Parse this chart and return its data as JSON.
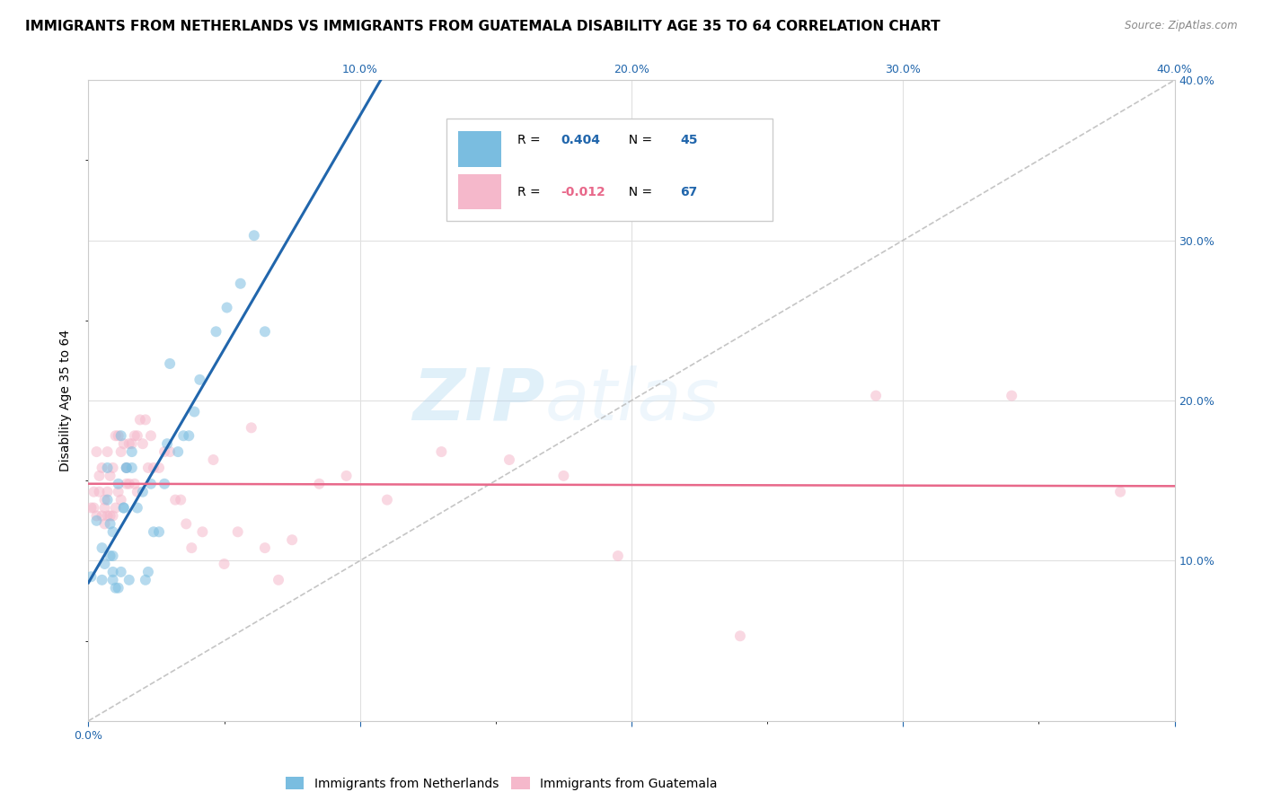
{
  "title": "IMMIGRANTS FROM NETHERLANDS VS IMMIGRANTS FROM GUATEMALA DISABILITY AGE 35 TO 64 CORRELATION CHART",
  "source": "Source: ZipAtlas.com",
  "ylabel": "Disability Age 35 to 64",
  "xlim": [
    0.0,
    0.4
  ],
  "ylim": [
    0.0,
    0.4
  ],
  "watermark": "ZIPatlas",
  "legend_netherlands": "Immigrants from Netherlands",
  "legend_guatemala": "Immigrants from Guatemala",
  "R_netherlands": 0.404,
  "N_netherlands": 45,
  "R_guatemala": -0.012,
  "N_guatemala": 67,
  "color_netherlands": "#7abde0",
  "color_guatemala": "#f5b8cb",
  "color_line_netherlands": "#2166ac",
  "color_line_guatemala": "#e8688a",
  "color_line_dashed": "#bbbbbb",
  "netherlands_x": [
    0.001,
    0.003,
    0.005,
    0.005,
    0.006,
    0.007,
    0.007,
    0.008,
    0.008,
    0.009,
    0.009,
    0.009,
    0.009,
    0.01,
    0.011,
    0.011,
    0.012,
    0.012,
    0.013,
    0.013,
    0.014,
    0.014,
    0.015,
    0.016,
    0.016,
    0.018,
    0.02,
    0.021,
    0.022,
    0.023,
    0.024,
    0.026,
    0.028,
    0.029,
    0.03,
    0.033,
    0.035,
    0.037,
    0.039,
    0.041,
    0.047,
    0.051,
    0.056,
    0.061,
    0.065
  ],
  "netherlands_y": [
    0.09,
    0.125,
    0.088,
    0.108,
    0.098,
    0.138,
    0.158,
    0.103,
    0.123,
    0.088,
    0.093,
    0.103,
    0.118,
    0.083,
    0.083,
    0.148,
    0.093,
    0.178,
    0.133,
    0.133,
    0.158,
    0.158,
    0.088,
    0.158,
    0.168,
    0.133,
    0.143,
    0.088,
    0.093,
    0.148,
    0.118,
    0.118,
    0.148,
    0.173,
    0.223,
    0.168,
    0.178,
    0.178,
    0.193,
    0.213,
    0.243,
    0.258,
    0.273,
    0.303,
    0.243
  ],
  "guatemala_x": [
    0.001,
    0.002,
    0.002,
    0.003,
    0.003,
    0.004,
    0.004,
    0.005,
    0.005,
    0.006,
    0.006,
    0.006,
    0.007,
    0.007,
    0.007,
    0.008,
    0.008,
    0.009,
    0.009,
    0.01,
    0.01,
    0.011,
    0.011,
    0.012,
    0.012,
    0.013,
    0.014,
    0.014,
    0.015,
    0.015,
    0.016,
    0.017,
    0.017,
    0.018,
    0.018,
    0.019,
    0.02,
    0.021,
    0.022,
    0.023,
    0.024,
    0.026,
    0.028,
    0.03,
    0.032,
    0.034,
    0.036,
    0.038,
    0.042,
    0.046,
    0.05,
    0.055,
    0.06,
    0.065,
    0.07,
    0.075,
    0.085,
    0.095,
    0.11,
    0.13,
    0.155,
    0.175,
    0.195,
    0.24,
    0.29,
    0.34,
    0.38
  ],
  "guatemala_y": [
    0.133,
    0.133,
    0.143,
    0.168,
    0.128,
    0.143,
    0.153,
    0.128,
    0.158,
    0.123,
    0.138,
    0.133,
    0.143,
    0.168,
    0.128,
    0.153,
    0.128,
    0.158,
    0.128,
    0.133,
    0.178,
    0.178,
    0.143,
    0.168,
    0.138,
    0.173,
    0.158,
    0.148,
    0.173,
    0.148,
    0.173,
    0.148,
    0.178,
    0.143,
    0.178,
    0.188,
    0.173,
    0.188,
    0.158,
    0.178,
    0.158,
    0.158,
    0.168,
    0.168,
    0.138,
    0.138,
    0.123,
    0.108,
    0.118,
    0.163,
    0.098,
    0.118,
    0.183,
    0.108,
    0.088,
    0.113,
    0.148,
    0.153,
    0.138,
    0.168,
    0.163,
    0.153,
    0.103,
    0.053,
    0.203,
    0.203,
    0.143
  ],
  "background_color": "#ffffff",
  "grid_color": "#e0e0e0",
  "title_fontsize": 11,
  "axis_fontsize": 10,
  "tick_fontsize": 9,
  "legend_fontsize": 10,
  "marker_size": 75,
  "marker_alpha": 0.55
}
